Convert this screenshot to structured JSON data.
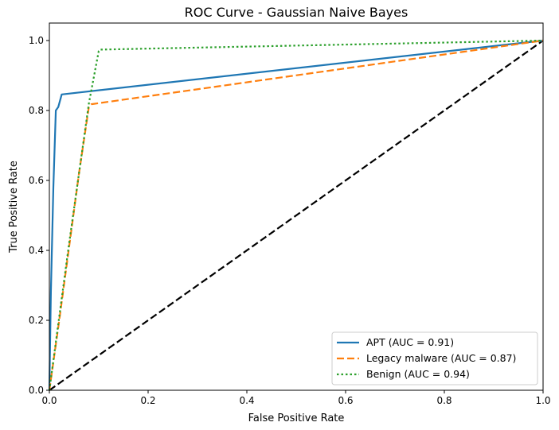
{
  "chart_data": {
    "type": "line",
    "title": "ROC Curve - Gaussian Naive Bayes",
    "xlabel": "False Positive Rate",
    "ylabel": "True Positive Rate",
    "xlim": [
      0.0,
      1.0
    ],
    "ylim": [
      0.0,
      1.05
    ],
    "xticks": [
      "0.0",
      "0.2",
      "0.4",
      "0.6",
      "0.8",
      "1.0"
    ],
    "yticks": [
      "0.0",
      "0.2",
      "0.4",
      "0.6",
      "0.8",
      "1.0"
    ],
    "grid": false,
    "legend_position": "lower-right",
    "series": [
      {
        "name": "APT (AUC = 0.91)",
        "color": "#1f77b4",
        "style": "solid",
        "x": [
          0.0,
          0.003,
          0.008,
          0.013,
          0.018,
          0.02,
          0.022,
          0.025,
          1.0
        ],
        "y": [
          0.0,
          0.28,
          0.58,
          0.8,
          0.81,
          0.82,
          0.83,
          0.846,
          1.0
        ]
      },
      {
        "name": "Legacy malware (AUC = 0.87)",
        "color": "#ff7f0e",
        "style": "dashed",
        "x": [
          0.0,
          0.02,
          0.04,
          0.06,
          0.08,
          0.085,
          1.0
        ],
        "y": [
          0.0,
          0.2,
          0.41,
          0.62,
          0.81,
          0.818,
          1.0
        ]
      },
      {
        "name": "Benign (AUC = 0.94)",
        "color": "#2ca02c",
        "style": "dotted",
        "x": [
          0.0,
          0.02,
          0.04,
          0.06,
          0.08,
          0.1,
          0.103,
          1.0
        ],
        "y": [
          0.0,
          0.21,
          0.42,
          0.62,
          0.82,
          0.97,
          0.974,
          1.0
        ]
      },
      {
        "name": "",
        "color": "#000000",
        "style": "dashed",
        "x": [
          0.0,
          1.0
        ],
        "y": [
          0.0,
          1.0
        ]
      }
    ]
  }
}
